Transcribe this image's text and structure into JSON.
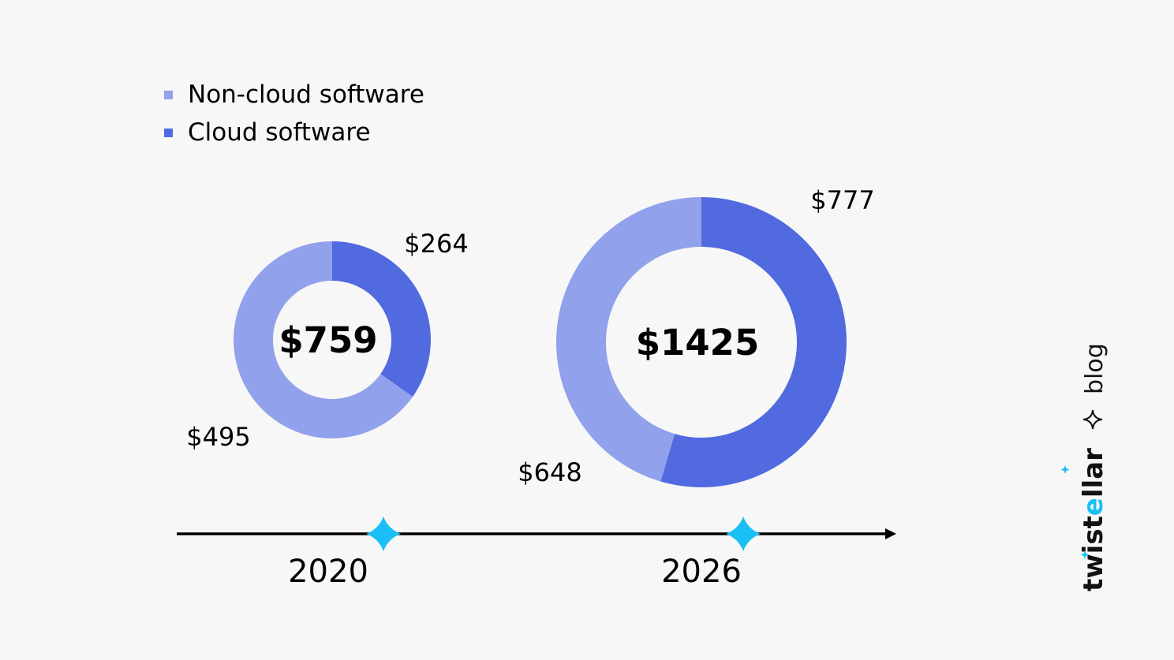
{
  "chart_data": {
    "type": "pie",
    "subtype": "donut",
    "title": "",
    "legend": {
      "placement": "top-left",
      "entries": [
        {
          "name": "Non-cloud software",
          "color": "#92a1ec"
        },
        {
          "name": "Cloud software",
          "color": "#516ae0"
        }
      ]
    },
    "charts": [
      {
        "year": "2020",
        "total": 759,
        "total_label": "$759",
        "slices": [
          {
            "series": "Cloud software",
            "value": 264,
            "label": "$264"
          },
          {
            "series": "Non-cloud software",
            "value": 495,
            "label": "$495"
          }
        ]
      },
      {
        "year": "2026",
        "total": 1425,
        "total_label": "$1425",
        "slices": [
          {
            "series": "Cloud software",
            "value": 777,
            "label": "$777"
          },
          {
            "series": "Non-cloud software",
            "value": 648,
            "label": "$648"
          }
        ]
      }
    ],
    "timeline": {
      "labels": [
        "2020",
        "2026"
      ],
      "marker_color": "#19bff5"
    }
  },
  "legend": {
    "items": [
      {
        "label": "Non-cloud software",
        "color": "#92a1ec"
      },
      {
        "label": "Cloud software",
        "color": "#516ae0"
      }
    ]
  },
  "brand": {
    "name": "twistellar",
    "suffix": "blog",
    "accent": "#19bff5"
  }
}
